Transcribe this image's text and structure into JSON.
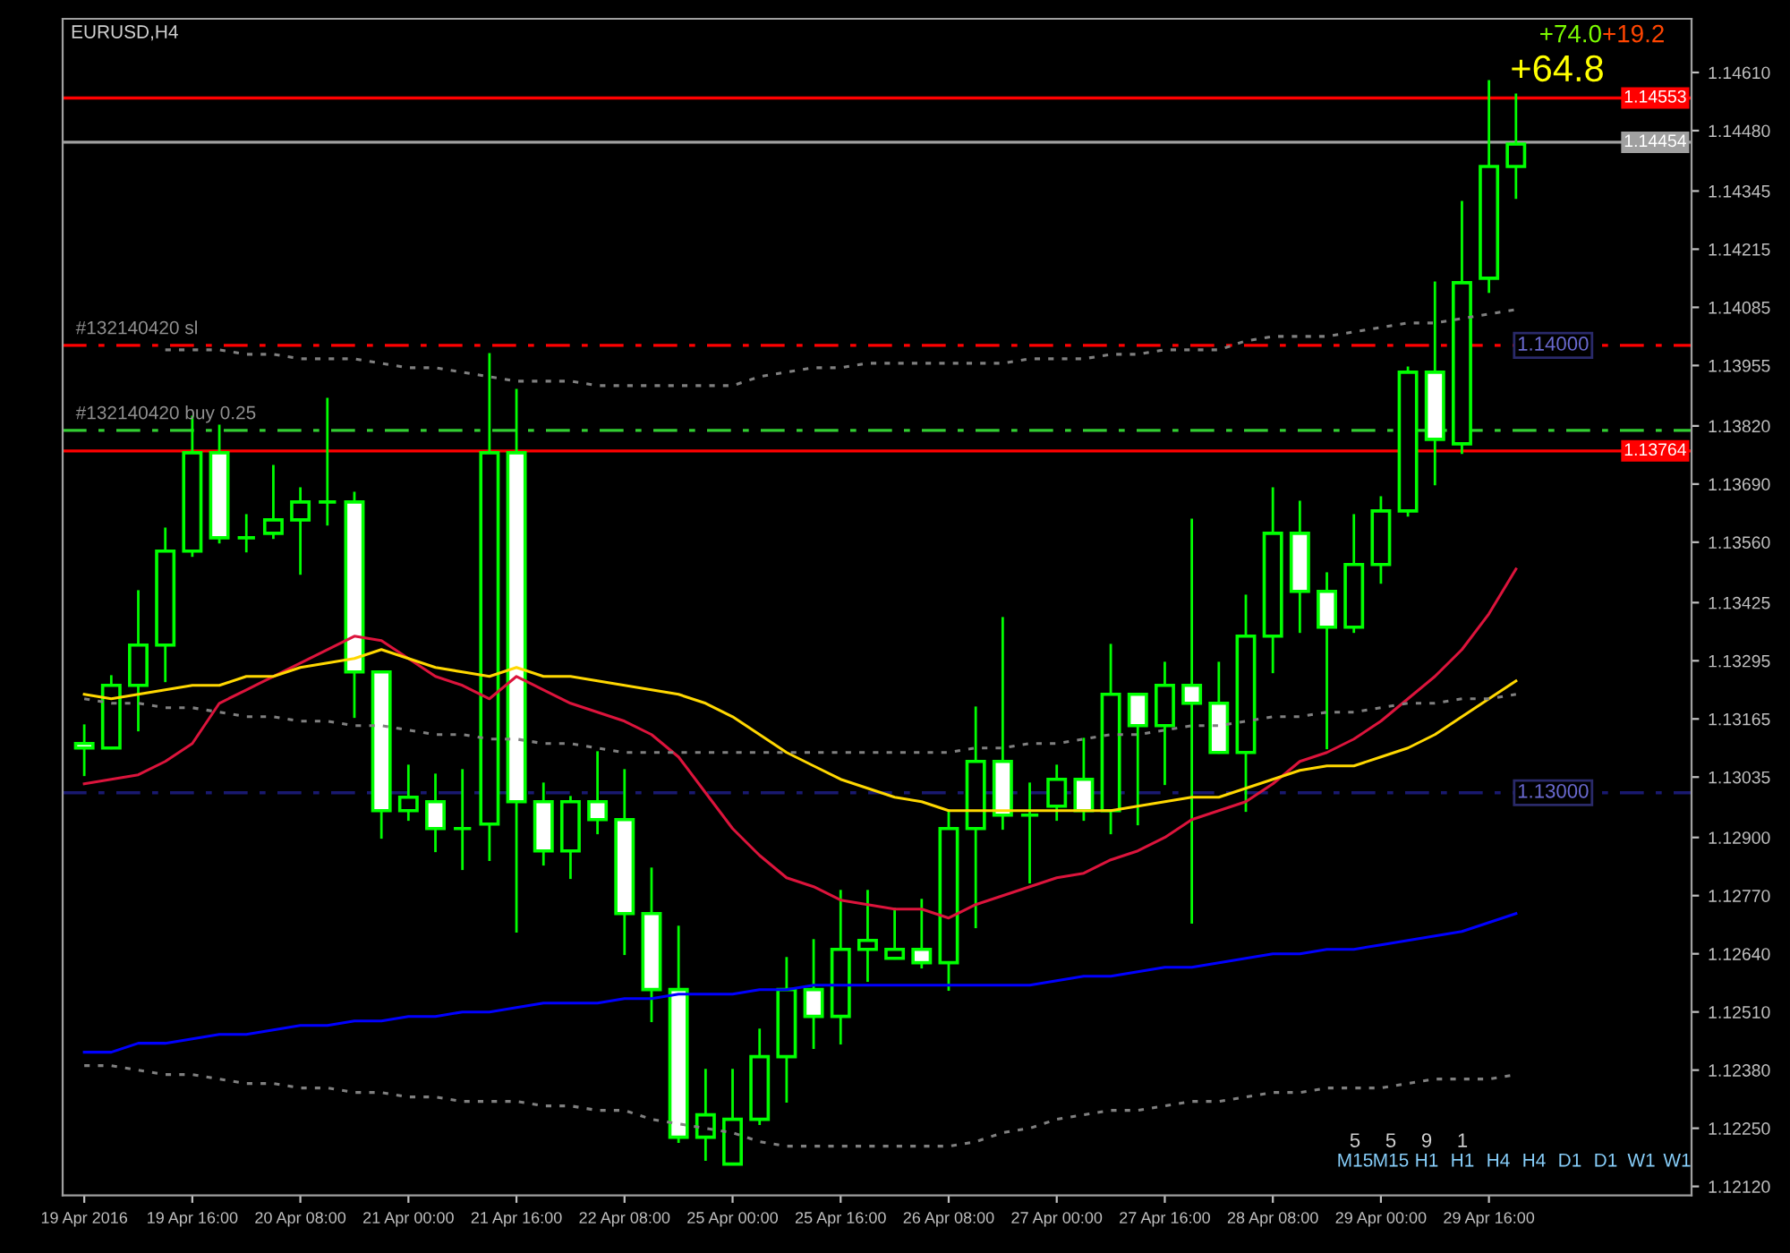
{
  "chart_data": {
    "type": "candlestick",
    "title": "EURUSD,H4",
    "categories": [
      "19 Apr 2016",
      null,
      null,
      null,
      "19 Apr 16:00",
      null,
      null,
      null,
      "20 Apr 08:00",
      null,
      null,
      null,
      "21 Apr 00:00",
      null,
      null,
      null,
      "21 Apr 16:00",
      null,
      null,
      null,
      "22 Apr 08:00",
      null,
      null,
      null,
      "25 Apr 00:00",
      null,
      null,
      null,
      "25 Apr 16:00",
      null,
      null,
      null,
      "26 Apr 08:00",
      null,
      null,
      null,
      "27 Apr 00:00",
      null,
      null,
      null,
      "27 Apr 16:00",
      null,
      null,
      null,
      "28 Apr 08:00",
      null,
      null,
      null,
      "29 Apr 00:00",
      null,
      null,
      null,
      "29 Apr 16:00",
      null
    ],
    "color": "#00ff00",
    "ohlc": [
      [
        1.1311,
        1.1315,
        1.1304,
        1.131
      ],
      [
        1.131,
        1.1326,
        1.131,
        1.1324
      ],
      [
        1.1324,
        1.1345,
        1.1314,
        1.1333
      ],
      [
        1.1333,
        1.1359,
        1.1325,
        1.1354
      ],
      [
        1.1354,
        1.1384,
        1.1353,
        1.1376
      ],
      [
        1.1376,
        1.1382,
        1.1356,
        1.1357
      ],
      [
        1.1357,
        1.1362,
        1.1354,
        1.1357
      ],
      [
        1.1358,
        1.1373,
        1.1357,
        1.1361
      ],
      [
        1.1361,
        1.1368,
        1.1349,
        1.1365
      ],
      [
        1.1365,
        1.1388,
        1.136,
        1.1365
      ],
      [
        1.1365,
        1.1367,
        1.1317,
        1.1327
      ],
      [
        1.1327,
        1.1327,
        1.129,
        1.1296
      ],
      [
        1.1296,
        1.1306,
        1.1294,
        1.1299
      ],
      [
        1.1298,
        1.1304,
        1.1287,
        1.1292
      ],
      [
        1.1292,
        1.1305,
        1.1283,
        1.1292
      ],
      [
        1.1293,
        1.1398,
        1.1285,
        1.1376
      ],
      [
        1.1376,
        1.139,
        1.1269,
        1.1298
      ],
      [
        1.1298,
        1.1302,
        1.1284,
        1.1287
      ],
      [
        1.1287,
        1.1299,
        1.1281,
        1.1298
      ],
      [
        1.1298,
        1.1309,
        1.1291,
        1.1294
      ],
      [
        1.1294,
        1.1305,
        1.1264,
        1.1273
      ],
      [
        1.1273,
        1.1283,
        1.1249,
        1.1256
      ],
      [
        1.1256,
        1.127,
        1.1222,
        1.1223
      ],
      [
        1.1223,
        1.1238,
        1.1218,
        1.1228
      ],
      [
        1.1217,
        1.1238,
        1.1217,
        1.1227
      ],
      [
        1.1227,
        1.1247,
        1.1226,
        1.1241
      ],
      [
        1.1241,
        1.1263,
        1.1231,
        1.1256
      ],
      [
        1.1256,
        1.1267,
        1.1243,
        1.125
      ],
      [
        1.125,
        1.1278,
        1.1244,
        1.1265
      ],
      [
        1.1265,
        1.1278,
        1.1258,
        1.1267
      ],
      [
        1.1263,
        1.1274,
        1.1263,
        1.1265
      ],
      [
        1.1265,
        1.1276,
        1.1261,
        1.1262
      ],
      [
        1.1262,
        1.1296,
        1.1256,
        1.1292
      ],
      [
        1.1292,
        1.1319,
        1.127,
        1.1307
      ],
      [
        1.1307,
        1.1339,
        1.1292,
        1.1295
      ],
      [
        1.1295,
        1.1302,
        1.128,
        1.1295
      ],
      [
        1.1297,
        1.1306,
        1.1294,
        1.1303
      ],
      [
        1.1303,
        1.1312,
        1.1294,
        1.1296
      ],
      [
        1.1296,
        1.1333,
        1.1291,
        1.1322
      ],
      [
        1.1322,
        1.1322,
        1.1293,
        1.1315
      ],
      [
        1.1315,
        1.1329,
        1.1302,
        1.1324
      ],
      [
        1.1324,
        1.1361,
        1.1271,
        1.132
      ],
      [
        1.132,
        1.1329,
        1.1309,
        1.1309
      ],
      [
        1.1309,
        1.1344,
        1.1296,
        1.1335
      ],
      [
        1.1335,
        1.1368,
        1.1327,
        1.1358
      ],
      [
        1.1358,
        1.1365,
        1.1336,
        1.1345
      ],
      [
        1.1345,
        1.1349,
        1.131,
        1.1337
      ],
      [
        1.1337,
        1.1362,
        1.1336,
        1.1351
      ],
      [
        1.1351,
        1.1366,
        1.1347,
        1.1363
      ],
      [
        1.1363,
        1.1395,
        1.1362,
        1.1394
      ],
      [
        1.1394,
        1.1414,
        1.1369,
        1.1379
      ],
      [
        1.1378,
        1.1432,
        1.1376,
        1.1414
      ],
      [
        1.1415,
        1.1459,
        1.1412,
        1.144
      ],
      [
        1.144,
        1.1456,
        1.1433,
        1.1445
      ]
    ],
    "series": [
      {
        "type": "line",
        "color": "#dc143c",
        "line_style": "solid",
        "values": [
          1.1302,
          1.1303,
          1.1304,
          1.1307,
          1.1311,
          1.132,
          1.1323,
          1.1326,
          1.1329,
          1.1332,
          1.1335,
          1.1334,
          1.133,
          1.1326,
          1.1324,
          1.1321,
          1.1326,
          1.1323,
          1.132,
          1.1318,
          1.1316,
          1.1313,
          1.1308,
          1.13,
          1.1292,
          1.1286,
          1.1281,
          1.1279,
          1.1276,
          1.1275,
          1.1274,
          1.1274,
          1.1272,
          1.1275,
          1.1277,
          1.1279,
          1.1281,
          1.1282,
          1.1285,
          1.1287,
          1.129,
          1.1294,
          1.1296,
          1.1298,
          1.1302,
          1.1307,
          1.1309,
          1.1312,
          1.1316,
          1.1321,
          1.1326,
          1.1332,
          1.134,
          1.135
        ]
      },
      {
        "type": "line",
        "color": "#ffd700",
        "line_style": "solid",
        "values": [
          1.1322,
          1.1321,
          1.1322,
          1.1323,
          1.1324,
          1.1324,
          1.1326,
          1.1326,
          1.1328,
          1.1329,
          1.133,
          1.1332,
          1.133,
          1.1328,
          1.1327,
          1.1326,
          1.1328,
          1.1326,
          1.1326,
          1.1325,
          1.1324,
          1.1323,
          1.1322,
          1.132,
          1.1317,
          1.1313,
          1.1309,
          1.1306,
          1.1303,
          1.1301,
          1.1299,
          1.1298,
          1.1296,
          1.1296,
          1.1296,
          1.1296,
          1.1296,
          1.1296,
          1.1296,
          1.1297,
          1.1298,
          1.1299,
          1.1299,
          1.1301,
          1.1303,
          1.1305,
          1.1306,
          1.1306,
          1.1308,
          1.131,
          1.1313,
          1.1317,
          1.1321,
          1.1325
        ]
      },
      {
        "type": "line",
        "color": "#0000ff",
        "line_style": "solid",
        "values": [
          1.1242,
          1.1242,
          1.1244,
          1.1244,
          1.1245,
          1.1246,
          1.1246,
          1.1247,
          1.1248,
          1.1248,
          1.1249,
          1.1249,
          1.125,
          1.125,
          1.1251,
          1.1251,
          1.1252,
          1.1253,
          1.1253,
          1.1253,
          1.1254,
          1.1254,
          1.1255,
          1.1255,
          1.1255,
          1.1256,
          1.1256,
          1.1257,
          1.1257,
          1.1257,
          1.1257,
          1.1257,
          1.1257,
          1.1257,
          1.1257,
          1.1257,
          1.1258,
          1.1259,
          1.1259,
          1.126,
          1.1261,
          1.1261,
          1.1262,
          1.1263,
          1.1264,
          1.1264,
          1.1265,
          1.1265,
          1.1266,
          1.1267,
          1.1268,
          1.1269,
          1.1271,
          1.1273
        ]
      },
      {
        "type": "line",
        "color": "#808080",
        "line_style": "dotted",
        "values": [
          null,
          null,
          null,
          1.1399,
          1.1399,
          1.1399,
          1.1398,
          1.1398,
          1.1397,
          1.1397,
          1.1397,
          1.1396,
          1.1395,
          1.1395,
          1.1394,
          1.1393,
          1.1392,
          1.1392,
          1.1392,
          1.1391,
          1.1391,
          1.1391,
          1.1391,
          1.1391,
          1.1391,
          1.1393,
          1.1394,
          1.1395,
          1.1395,
          1.1396,
          1.1396,
          1.1396,
          1.1396,
          1.1396,
          1.1396,
          1.1397,
          1.1397,
          1.1397,
          1.1398,
          1.1398,
          1.1399,
          1.1399,
          1.1399,
          1.1401,
          1.1402,
          1.1402,
          1.1402,
          1.1403,
          1.1404,
          1.1405,
          1.1405,
          1.1406,
          1.1407,
          1.1408
        ]
      },
      {
        "type": "line",
        "color": "#808080",
        "line_style": "dotted",
        "values": [
          1.1321,
          1.132,
          1.132,
          1.1319,
          1.1319,
          1.1318,
          1.1317,
          1.1317,
          1.1316,
          1.1316,
          1.1315,
          1.1315,
          1.1314,
          1.1313,
          1.1313,
          1.1312,
          1.1312,
          1.1311,
          1.1311,
          1.131,
          1.1309,
          1.1309,
          1.1309,
          1.1309,
          1.1309,
          1.1309,
          1.1309,
          1.1309,
          1.1309,
          1.1309,
          1.1309,
          1.1309,
          1.1309,
          1.131,
          1.131,
          1.1311,
          1.1311,
          1.1312,
          1.1313,
          1.1313,
          1.1314,
          1.1315,
          1.1315,
          1.1316,
          1.1317,
          1.1317,
          1.1318,
          1.1318,
          1.1319,
          1.132,
          1.132,
          1.1321,
          1.1321,
          1.1322
        ]
      },
      {
        "type": "line",
        "color": "#808080",
        "line_style": "dotted",
        "values": [
          1.1239,
          1.1239,
          1.1238,
          1.1237,
          1.1237,
          1.1236,
          1.1235,
          1.1235,
          1.1234,
          1.1234,
          1.1233,
          1.1233,
          1.1232,
          1.1232,
          1.1231,
          1.1231,
          1.1231,
          1.123,
          1.123,
          1.1229,
          1.1229,
          1.1227,
          1.1226,
          1.1225,
          1.1224,
          1.1222,
          1.1221,
          1.1221,
          1.1221,
          1.1221,
          1.1221,
          1.1221,
          1.1221,
          1.1222,
          1.1224,
          1.1225,
          1.1227,
          1.1228,
          1.1229,
          1.1229,
          1.123,
          1.1231,
          1.1231,
          1.1232,
          1.1233,
          1.1233,
          1.1234,
          1.1234,
          1.1234,
          1.1235,
          1.1236,
          1.1236,
          1.1236,
          1.1237
        ]
      }
    ],
    "ylim": [
      1.121,
      1.1473
    ],
    "yticks": [
      {
        "value": 1.1461,
        "label": "1.14610"
      },
      {
        "value": 1.1448,
        "label": "1.14480"
      },
      {
        "value": 1.14345,
        "label": "1.14345"
      },
      {
        "value": 1.14215,
        "label": "1.14215"
      },
      {
        "value": 1.14085,
        "label": "1.14085"
      },
      {
        "value": 1.13955,
        "label": "1.13955"
      },
      {
        "value": 1.1382,
        "label": "1.13820"
      },
      {
        "value": 1.1369,
        "label": "1.13690"
      },
      {
        "value": 1.1356,
        "label": "1.13560"
      },
      {
        "value": 1.13425,
        "label": "1.13425"
      },
      {
        "value": 1.13295,
        "label": "1.13295"
      },
      {
        "value": 1.13165,
        "label": "1.13165"
      },
      {
        "value": 1.13035,
        "label": "1.13035"
      },
      {
        "value": 1.129,
        "label": "1.12900"
      },
      {
        "value": 1.1277,
        "label": "1.12770"
      },
      {
        "value": 1.1264,
        "label": "1.12640"
      },
      {
        "value": 1.1251,
        "label": "1.12510"
      },
      {
        "value": 1.1238,
        "label": "1.12380"
      },
      {
        "value": 1.1225,
        "label": "1.12250"
      },
      {
        "value": 1.1212,
        "label": "1.12120"
      }
    ],
    "ref_lines": [
      {
        "axis": "y",
        "value": 1.14553,
        "label": "1.14553",
        "color": "#ff0000",
        "line_style": "solid"
      },
      {
        "axis": "y",
        "value": 1.14454,
        "label": "1.14454",
        "color": "#a0a0a0",
        "line_style": "solid"
      },
      {
        "axis": "y",
        "value": 1.13764,
        "label": "1.13764",
        "color": "#ff0000",
        "line_style": "solid"
      },
      {
        "axis": "y",
        "value": 1.14,
        "label": "#132140420 sl",
        "color": "#ff0000",
        "line_style": "dashed"
      },
      {
        "axis": "y",
        "value": 1.1381,
        "label": "#132140420 buy 0.25",
        "color": "#32cd32",
        "line_style": "dashed"
      },
      {
        "axis": "y",
        "value": 1.13,
        "color": "#191970",
        "line_style": "dashed"
      }
    ],
    "annotations": [
      "+74.0",
      "+19.2",
      "+64.8",
      {
        "text": "1.14000",
        "y": 1.14
      },
      {
        "text": "1.13000",
        "y": 1.13
      },
      "5",
      "5",
      "9",
      "1",
      "M15",
      "M15",
      "H1",
      "H1",
      "H4",
      "H4",
      "D1",
      "D1",
      "W1",
      "W1"
    ],
    "grid": false
  }
}
